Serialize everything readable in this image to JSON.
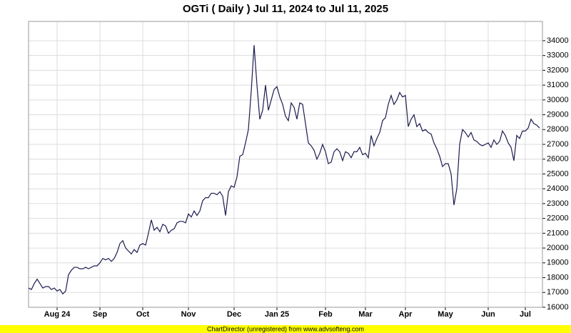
{
  "chart_data": {
    "type": "line",
    "title": "OGTi ( Daily ) Jul 11, 2024 to Jul 11, 2025",
    "footer": "ChartDirector (unregistered) from www.advsofteng.com",
    "color": "#1c1c50",
    "grid": true,
    "y_axis_side": "right",
    "xlim": [
      0,
      180
    ],
    "xticks": [
      {
        "value": 10,
        "label": "Aug 24"
      },
      {
        "value": 25,
        "label": "Sep"
      },
      {
        "value": 40,
        "label": "Oct"
      },
      {
        "value": 56,
        "label": "Nov"
      },
      {
        "value": 72,
        "label": "Dec"
      },
      {
        "value": 87,
        "label": "Jan 25"
      },
      {
        "value": 104,
        "label": "Feb"
      },
      {
        "value": 118,
        "label": "Mar"
      },
      {
        "value": 132,
        "label": "Apr"
      },
      {
        "value": 146,
        "label": "May"
      },
      {
        "value": 161,
        "label": "Jun"
      },
      {
        "value": 174,
        "label": "Jul"
      }
    ],
    "ylim": [
      16000,
      35300
    ],
    "yticks": [
      16000,
      17000,
      18000,
      19000,
      20000,
      21000,
      22000,
      23000,
      24000,
      25000,
      26000,
      27000,
      28000,
      29000,
      30000,
      31000,
      32000,
      33000,
      34000
    ],
    "values": [
      17300,
      17200,
      17600,
      17900,
      17600,
      17300,
      17400,
      17400,
      17200,
      17300,
      17100,
      17200,
      16900,
      17100,
      18200,
      18500,
      18700,
      18700,
      18600,
      18600,
      18700,
      18600,
      18700,
      18800,
      18800,
      19000,
      19300,
      19200,
      19300,
      19100,
      19300,
      19700,
      20300,
      20500,
      20000,
      19800,
      19600,
      19900,
      19700,
      20200,
      20300,
      20200,
      21000,
      21900,
      21200,
      21400,
      21100,
      21600,
      21500,
      21000,
      21200,
      21300,
      21700,
      21800,
      21800,
      21700,
      22300,
      22100,
      22500,
      22200,
      22500,
      23200,
      23400,
      23400,
      23700,
      23700,
      23600,
      23800,
      23500,
      22200,
      23800,
      24200,
      24100,
      24800,
      26200,
      26300,
      27100,
      28000,
      30600,
      33700,
      31000,
      28700,
      29300,
      31000,
      29300,
      30000,
      30700,
      30900,
      30200,
      29700,
      28900,
      28600,
      29800,
      29500,
      28700,
      29800,
      29700,
      28400,
      27100,
      26900,
      26600,
      26000,
      26400,
      27000,
      26500,
      25700,
      25800,
      26500,
      26700,
      26500,
      25900,
      26500,
      26400,
      26100,
      26500,
      26500,
      26800,
      26300,
      26400,
      26100,
      27600,
      26900,
      27400,
      27800,
      28600,
      28800,
      29700,
      30300,
      29700,
      30000,
      30500,
      30200,
      30300,
      28200,
      28700,
      29000,
      28200,
      28400,
      27900,
      28000,
      27800,
      27700,
      27100,
      26700,
      26200,
      25500,
      25700,
      25700,
      25000,
      22900,
      24000,
      27000,
      28000,
      27800,
      27500,
      27800,
      27300,
      27200,
      27000,
      26900,
      27000,
      27100,
      26800,
      27300,
      27000,
      27200,
      27900,
      27600,
      27100,
      26800,
      25900,
      27600,
      27400,
      27900,
      27900,
      28100,
      28700,
      28400,
      28300,
      28100
    ]
  }
}
